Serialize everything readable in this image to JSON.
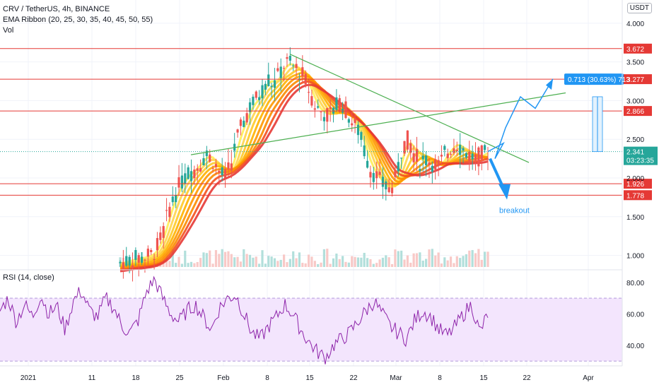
{
  "legend": {
    "symbol_line": "CRV / TetherUS, 4h, BINANCE",
    "indicator_1": "EMA Ribbon (20, 25, 30, 35, 40, 45, 50, 55)",
    "indicator_2": "Vol",
    "rsi_label": "RSI (14, close)",
    "currency_badge": "USDT"
  },
  "annotations": {
    "measure_label": "0.713 (30.63%) 713",
    "breakout_label": "breakout",
    "countdown": "03:23:35"
  },
  "colors": {
    "resistance": "#e53935",
    "trendline": "#4caf50",
    "projection": "#2196f3",
    "rsi_line": "#8e24aa",
    "rsi_band": "#f3e5fd",
    "up_candle": "#26a69a",
    "down_candle": "#ef5350",
    "ribbon_fast": "#ffeb3b",
    "ribbon_slow": "#e53935"
  },
  "chart_data": [
    {
      "type": "candlestick",
      "pane": "price",
      "ylim": [
        0.85,
        4.3
      ],
      "y_ticks": [
        "4.000",
        "3.500",
        "3.000",
        "2.500",
        "2.000",
        "1.500",
        "1.000"
      ],
      "x_ticks": [
        "2021",
        "11",
        "18",
        "25",
        "Feb",
        "8",
        "15",
        "22",
        "Mar",
        "8",
        "15",
        "22",
        "Apr"
      ],
      "current_price": "2.341",
      "level_labels": [
        "3.672",
        "3.277",
        "2.866",
        "1.926",
        "1.778"
      ],
      "horizontal_levels": [
        3.672,
        3.277,
        2.866,
        1.926,
        1.778
      ],
      "close_series_approx": [
        0.9,
        0.92,
        0.95,
        0.96,
        0.98,
        1.0,
        1.1,
        1.3,
        1.6,
        1.8,
        1.95,
        2.05,
        2.1,
        2.2,
        2.3,
        2.25,
        2.1,
        2.0,
        2.15,
        2.5,
        2.7,
        2.9,
        3.0,
        3.1,
        3.3,
        3.2,
        3.35,
        3.5,
        3.45,
        3.4,
        3.3,
        3.1,
        2.9,
        2.85,
        2.8,
        2.9,
        3.0,
        2.85,
        2.7,
        2.6,
        2.3,
        2.1,
        2.0,
        1.9,
        1.85,
        2.0,
        2.4,
        2.5,
        2.3,
        2.2,
        2.25,
        2.2,
        2.15,
        2.3,
        2.4,
        2.45,
        2.35,
        2.3,
        2.25,
        2.3,
        2.341
      ],
      "resistance_trendline": {
        "from": 3.6,
        "to": 2.2
      },
      "support_trendline": {
        "from": 2.3,
        "to": 3.1
      },
      "projection_path": [
        2.341,
        2.45,
        2.25,
        2.65,
        3.05,
        2.9,
        3.28
      ],
      "breakout_target": 1.85
    },
    {
      "type": "line",
      "pane": "rsi",
      "title": "RSI (14, close)",
      "ylim": [
        27,
        88
      ],
      "y_ticks": [
        "80.00",
        "60.00",
        "40.00"
      ],
      "band": [
        30,
        70
      ],
      "values_approx": [
        62,
        70,
        55,
        66,
        58,
        72,
        60,
        65,
        50,
        68,
        75,
        62,
        58,
        70,
        64,
        52,
        48,
        56,
        74,
        82,
        70,
        60,
        55,
        62,
        66,
        58,
        50,
        64,
        70,
        72,
        60,
        48,
        44,
        52,
        58,
        66,
        60,
        50,
        42,
        36,
        32,
        40,
        44,
        48,
        55,
        62,
        68,
        60,
        52,
        48,
        44,
        56,
        62,
        58,
        50,
        46,
        52,
        60,
        66,
        48,
        60
      ]
    }
  ]
}
